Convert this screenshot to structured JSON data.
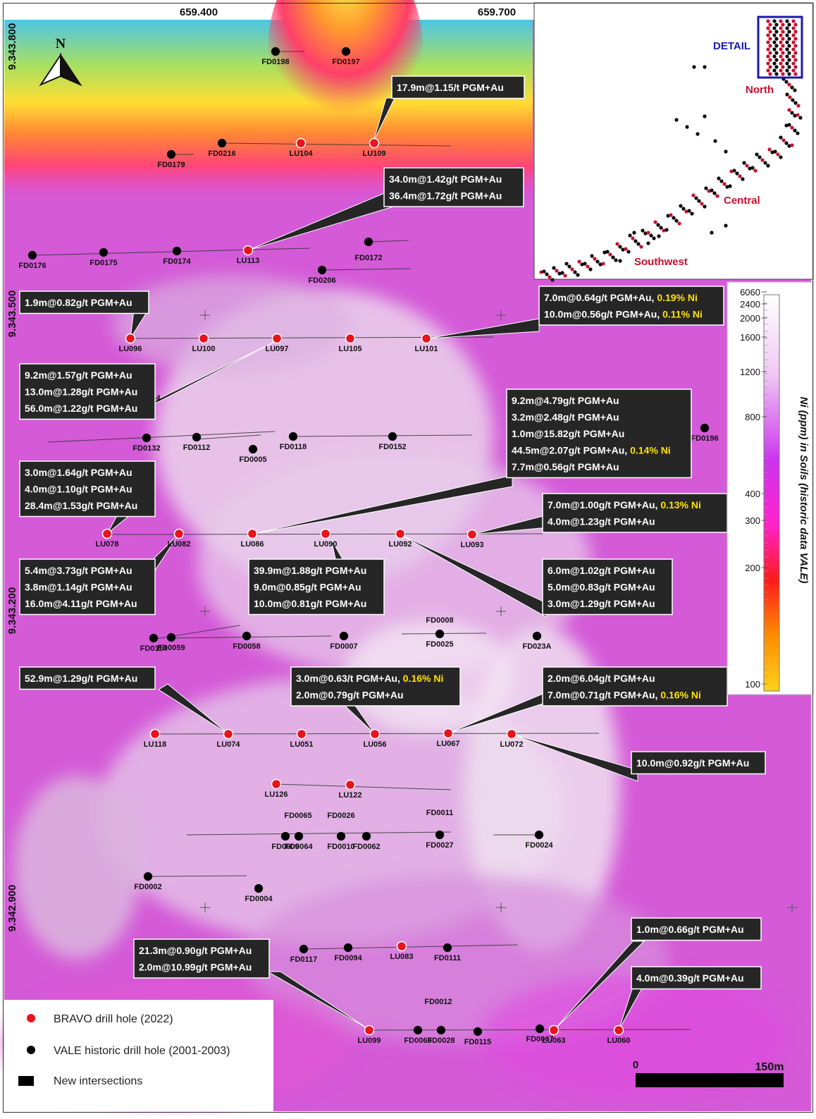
{
  "coordinates": {
    "x_top": [
      "659.400",
      "659.700"
    ],
    "y_left": [
      "9.343.800",
      "9.343.500",
      "9.343.200",
      "9.342.900"
    ]
  },
  "north_arrow": {
    "letter": "N",
    "icon": "north-arrow-icon"
  },
  "inset": {
    "detail": "DETAIL",
    "north": "North",
    "central": "Central",
    "southwest": "Southwest",
    "colors": {
      "detail": "#1a1ab0",
      "zones": "#c8102e"
    }
  },
  "colorbar": {
    "title": "Ni (ppm) in Soils (historic data VALE)",
    "ticks": [
      "6060",
      "2400",
      "2000",
      "1600",
      "1200",
      "800",
      "400",
      "300",
      "200",
      "100"
    ]
  },
  "legend": {
    "bravo": "BRAVO drill hole (2022)",
    "vale": "VALE historic drill hole (2001-2003)",
    "new": "New intersections",
    "colors": {
      "bravo": "#e8141c",
      "vale": "#000000"
    }
  },
  "scale": {
    "zero": "0",
    "max": "150m"
  },
  "holes": [
    {
      "id": "FD0198",
      "type": "vale"
    },
    {
      "id": "FD0197",
      "type": "vale"
    },
    {
      "id": "FD0179",
      "type": "vale"
    },
    {
      "id": "FD0216",
      "type": "vale"
    },
    {
      "id": "LU104",
      "type": "bravo"
    },
    {
      "id": "LU109",
      "type": "bravo"
    },
    {
      "id": "FD0176",
      "type": "vale"
    },
    {
      "id": "FD0175",
      "type": "vale"
    },
    {
      "id": "FD0174",
      "type": "vale"
    },
    {
      "id": "LU113",
      "type": "bravo"
    },
    {
      "id": "FD0172",
      "type": "vale"
    },
    {
      "id": "FD0206",
      "type": "vale"
    },
    {
      "id": "LU096",
      "type": "bravo"
    },
    {
      "id": "LU100",
      "type": "bravo"
    },
    {
      "id": "LU097",
      "type": "bravo"
    },
    {
      "id": "LU105",
      "type": "bravo"
    },
    {
      "id": "LU101",
      "type": "bravo"
    },
    {
      "id": "FD0054",
      "type": "vale"
    },
    {
      "id": "FD0132",
      "type": "vale"
    },
    {
      "id": "FD0112",
      "type": "vale"
    },
    {
      "id": "FD0005",
      "type": "vale"
    },
    {
      "id": "FD0118",
      "type": "vale"
    },
    {
      "id": "FD0152",
      "type": "vale"
    },
    {
      "id": "FD0196",
      "type": "vale"
    },
    {
      "id": "LU078",
      "type": "bravo"
    },
    {
      "id": "LU082",
      "type": "bravo"
    },
    {
      "id": "LU086",
      "type": "bravo"
    },
    {
      "id": "LU090",
      "type": "bravo"
    },
    {
      "id": "LU092",
      "type": "bravo"
    },
    {
      "id": "LU093",
      "type": "bravo"
    },
    {
      "id": "FD0114",
      "type": "vale"
    },
    {
      "id": "FD0059",
      "type": "vale"
    },
    {
      "id": "FD0058",
      "type": "vale"
    },
    {
      "id": "FD0007",
      "type": "vale"
    },
    {
      "id": "FD0008",
      "type": "vale"
    },
    {
      "id": "FD0025",
      "type": "vale"
    },
    {
      "id": "FD023A",
      "type": "vale"
    },
    {
      "id": "LU118",
      "type": "bravo"
    },
    {
      "id": "LU074",
      "type": "bravo"
    },
    {
      "id": "LU051",
      "type": "bravo"
    },
    {
      "id": "LU056",
      "type": "bravo"
    },
    {
      "id": "LU067",
      "type": "bravo"
    },
    {
      "id": "LU072",
      "type": "bravo"
    },
    {
      "id": "LU126",
      "type": "bravo"
    },
    {
      "id": "LU122",
      "type": "bravo"
    },
    {
      "id": "FD0065",
      "type": "vale"
    },
    {
      "id": "FD0026",
      "type": "vale"
    },
    {
      "id": "FD0011",
      "type": "vale"
    },
    {
      "id": "FD0009",
      "type": "vale"
    },
    {
      "id": "FD0064",
      "type": "vale"
    },
    {
      "id": "FD0010",
      "type": "vale"
    },
    {
      "id": "FD0062",
      "type": "vale"
    },
    {
      "id": "FD0027",
      "type": "vale"
    },
    {
      "id": "FD0024",
      "type": "vale"
    },
    {
      "id": "FD0002",
      "type": "vale"
    },
    {
      "id": "FD0004",
      "type": "vale"
    },
    {
      "id": "FD0117",
      "type": "vale"
    },
    {
      "id": "FD0094",
      "type": "vale"
    },
    {
      "id": "LU083",
      "type": "bravo"
    },
    {
      "id": "FD0111",
      "type": "vale"
    },
    {
      "id": "FD0012",
      "type": "vale"
    },
    {
      "id": "LU099",
      "type": "bravo"
    },
    {
      "id": "FD0068",
      "type": "vale"
    },
    {
      "id": "FD0028",
      "type": "vale"
    },
    {
      "id": "FD0115",
      "type": "vale"
    },
    {
      "id": "FD0067",
      "type": "vale"
    },
    {
      "id": "LU063",
      "type": "bravo"
    },
    {
      "id": "LU060",
      "type": "bravo"
    }
  ],
  "callouts": [
    {
      "hole": "LU109",
      "lines": [
        [
          "17.9m@1.15/t PGM+Au"
        ]
      ]
    },
    {
      "hole": "LU113",
      "lines": [
        [
          "34.0m@1.42g/t PGM+Au"
        ],
        [
          "36.4m@1.72g/t PGM+Au"
        ]
      ]
    },
    {
      "hole": "LU096",
      "lines": [
        [
          "1.9m@0.82g/t PGM+Au"
        ]
      ]
    },
    {
      "hole": "LU101",
      "lines": [
        [
          "7.0m@0.64g/t PGM+Au, ",
          "0.19% Ni"
        ],
        [
          "10.0m@0.56g/t PGM+Au, ",
          "0.11% Ni"
        ]
      ]
    },
    {
      "hole": "LU097",
      "lines": [
        [
          "9.2m@1.57g/t PGM+Au"
        ],
        [
          "13.0m@1.28g/t PGM+Au"
        ],
        [
          "56.0m@1.22g/t PGM+Au"
        ]
      ]
    },
    {
      "hole": "LU086",
      "lines": [
        [
          "9.2m@4.79g/t PGM+Au"
        ],
        [
          "3.2m@2.48g/t PGM+Au"
        ],
        [
          "1.0m@15.82g/t PGM+Au"
        ],
        [
          "44.5m@2.07g/t PGM+Au, ",
          "0.14% Ni"
        ],
        [
          "7.7m@0.56g/t PGM+Au"
        ]
      ]
    },
    {
      "hole": "LU078",
      "lines": [
        [
          "3.0m@1.64g/t PGM+Au"
        ],
        [
          "4.0m@1.10g/t PGM+Au"
        ],
        [
          "28.4m@1.53g/t PGM+Au"
        ]
      ]
    },
    {
      "hole": "LU093",
      "lines": [
        [
          "7.0m@1.00g/t PGM+Au, ",
          "0.13% Ni"
        ],
        [
          "4.0m@1.23g/t PGM+Au"
        ]
      ]
    },
    {
      "hole": "LU082",
      "lines": [
        [
          "5.4m@3.73g/t PGM+Au"
        ],
        [
          "3.8m@1.14g/t PGM+Au"
        ],
        [
          "16.0m@4.11g/t PGM+Au"
        ]
      ]
    },
    {
      "hole": "LU090",
      "lines": [
        [
          "39.9m@1.88g/t PGM+Au"
        ],
        [
          "9.0m@0.85g/t PGM+Au"
        ],
        [
          "10.0m@0.81g/t PGM+Au"
        ]
      ]
    },
    {
      "hole": "LU092",
      "lines": [
        [
          "6.0m@1.02g/t PGM+Au"
        ],
        [
          "5.0m@0.83g/t PGM+Au"
        ],
        [
          "3.0m@1.29g/t PGM+Au"
        ]
      ]
    },
    {
      "hole": "LU074",
      "lines": [
        [
          "52.9m@1.29g/t PGM+Au"
        ]
      ]
    },
    {
      "hole": "LU056",
      "lines": [
        [
          "3.0m@0.63/t PGM+Au, ",
          "0.16% Ni"
        ],
        [
          "2.0m@0.79g/t PGM+Au"
        ]
      ]
    },
    {
      "hole": "LU067",
      "lines": [
        [
          "2.0m@6.04g/t PGM+Au"
        ],
        [
          "7.0m@0.71g/t PGM+Au, ",
          "0.16% Ni"
        ]
      ]
    },
    {
      "hole": "LU072",
      "lines": [
        [
          "10.0m@0.92g/t PGM+Au"
        ]
      ]
    },
    {
      "hole": "LU063",
      "lines": [
        [
          "1.0m@0.66g/t PGM+Au"
        ]
      ]
    },
    {
      "hole": "LU060",
      "lines": [
        [
          "4.0m@0.39g/t PGM+Au"
        ]
      ]
    },
    {
      "hole": "LU099",
      "lines": [
        [
          "21.3m@0.90g/t PGM+Au"
        ],
        [
          "2.0m@10.99g/t PGM+Au"
        ]
      ]
    }
  ]
}
